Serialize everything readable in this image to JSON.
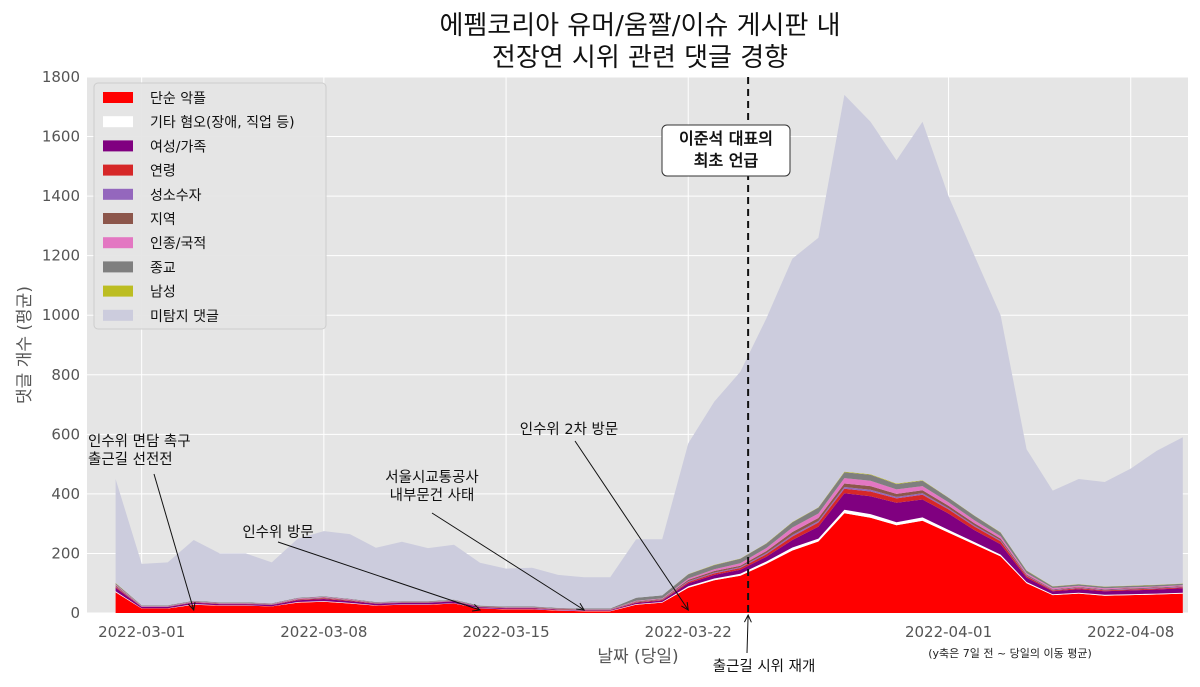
{
  "chart_data": {
    "type": "area",
    "stacked": true,
    "title": [
      "에펨코리아 유머/움짤/이슈 게시판 내",
      "전장연 시위 관련 댓글 경향"
    ],
    "xlabel": "날짜 (당일)",
    "ylabel": "댓글 개수 (평균)",
    "note": "(y축은 7일 전 ~ 당일의 이동 평균)",
    "ylim": [
      0,
      1800
    ],
    "yticks": [
      0,
      200,
      400,
      600,
      800,
      1000,
      1200,
      1400,
      1600,
      1800
    ],
    "xticks": [
      {
        "index": 1,
        "label": "2022-03-01"
      },
      {
        "index": 8,
        "label": "2022-03-08"
      },
      {
        "index": 15,
        "label": "2022-03-15"
      },
      {
        "index": 22,
        "label": "2022-03-22"
      },
      {
        "index": 32,
        "label": "2022-04-01"
      },
      {
        "index": 39,
        "label": "2022-04-08"
      }
    ],
    "xrange": [
      -1.1,
      41.2
    ],
    "grid": true,
    "legend_position": "top-left",
    "x": [
      "2022-02-28",
      "2022-03-01",
      "2022-03-02",
      "2022-03-03",
      "2022-03-04",
      "2022-03-05",
      "2022-03-06",
      "2022-03-07",
      "2022-03-08",
      "2022-03-09",
      "2022-03-10",
      "2022-03-11",
      "2022-03-12",
      "2022-03-13",
      "2022-03-14",
      "2022-03-15",
      "2022-03-16",
      "2022-03-17",
      "2022-03-18",
      "2022-03-19",
      "2022-03-20",
      "2022-03-21",
      "2022-03-22",
      "2022-03-23",
      "2022-03-24",
      "2022-03-25",
      "2022-03-26",
      "2022-03-27",
      "2022-03-28",
      "2022-03-29",
      "2022-03-30",
      "2022-03-31",
      "2022-04-01",
      "2022-04-02",
      "2022-04-03",
      "2022-04-04",
      "2022-04-05",
      "2022-04-06",
      "2022-04-07",
      "2022-04-08",
      "2022-04-09",
      "2022-04-10"
    ],
    "series": [
      {
        "name": "단순 악플",
        "color": "#ff0000",
        "values": [
          70,
          15,
          15,
          28,
          25,
          25,
          22,
          35,
          38,
          32,
          25,
          28,
          28,
          32,
          15,
          12,
          12,
          8,
          6,
          6,
          28,
          35,
          85,
          110,
          125,
          165,
          210,
          240,
          335,
          320,
          295,
          310,
          270,
          230,
          190,
          100,
          60,
          65,
          58,
          60,
          62,
          65
        ]
      },
      {
        "name": "기타 혐오(장애, 직업 등)",
        "color": "#ffffff",
        "values": [
          3,
          1,
          1,
          2,
          1,
          1,
          1,
          2,
          2,
          2,
          1,
          1,
          1,
          1,
          1,
          1,
          1,
          1,
          1,
          1,
          2,
          2,
          5,
          6,
          7,
          8,
          10,
          10,
          12,
          12,
          10,
          11,
          9,
          8,
          6,
          4,
          3,
          3,
          3,
          3,
          3,
          3
        ]
      },
      {
        "name": "여성/가족",
        "color": "#800080",
        "values": [
          12,
          4,
          4,
          5,
          4,
          4,
          4,
          6,
          7,
          6,
          5,
          5,
          5,
          6,
          3,
          3,
          3,
          2,
          2,
          2,
          4,
          5,
          10,
          12,
          13,
          16,
          25,
          40,
          55,
          60,
          65,
          60,
          55,
          40,
          35,
          15,
          10,
          12,
          12,
          13,
          14,
          15
        ]
      },
      {
        "name": "연령",
        "color": "#d62728",
        "values": [
          3,
          1,
          1,
          1,
          1,
          1,
          1,
          2,
          2,
          2,
          1,
          1,
          1,
          1,
          1,
          1,
          1,
          1,
          1,
          1,
          2,
          2,
          4,
          5,
          6,
          8,
          12,
          14,
          15,
          16,
          15,
          16,
          14,
          12,
          10,
          5,
          3,
          3,
          3,
          3,
          3,
          3
        ]
      },
      {
        "name": "성소수자",
        "color": "#9467bd",
        "values": [
          2,
          1,
          1,
          1,
          1,
          1,
          1,
          1,
          1,
          1,
          1,
          1,
          1,
          1,
          1,
          1,
          1,
          1,
          1,
          1,
          1,
          1,
          3,
          3,
          3,
          4,
          5,
          5,
          6,
          6,
          5,
          5,
          4,
          4,
          3,
          2,
          2,
          2,
          2,
          2,
          2,
          2
        ]
      },
      {
        "name": "지역",
        "color": "#8c564b",
        "values": [
          3,
          1,
          1,
          1,
          1,
          1,
          1,
          1,
          2,
          1,
          1,
          1,
          1,
          1,
          1,
          1,
          1,
          1,
          1,
          1,
          2,
          2,
          4,
          5,
          5,
          7,
          10,
          10,
          12,
          12,
          10,
          10,
          8,
          7,
          6,
          3,
          2,
          2,
          2,
          2,
          2,
          2
        ]
      },
      {
        "name": "인종/국적",
        "color": "#e377c2",
        "values": [
          3,
          1,
          1,
          1,
          1,
          1,
          1,
          2,
          2,
          2,
          1,
          1,
          1,
          1,
          1,
          1,
          1,
          1,
          1,
          1,
          2,
          2,
          5,
          6,
          8,
          10,
          15,
          15,
          18,
          18,
          15,
          14,
          12,
          10,
          8,
          5,
          4,
          4,
          3,
          3,
          3,
          3
        ]
      },
      {
        "name": "종교",
        "color": "#7f7f7f",
        "values": [
          4,
          2,
          2,
          2,
          2,
          2,
          2,
          2,
          2,
          2,
          2,
          2,
          2,
          2,
          2,
          2,
          2,
          2,
          2,
          2,
          10,
          10,
          14,
          14,
          15,
          15,
          18,
          20,
          20,
          20,
          18,
          18,
          15,
          15,
          12,
          8,
          5,
          5,
          5,
          5,
          5,
          5
        ]
      },
      {
        "name": "남성",
        "color": "#bcbd22",
        "values": [
          1,
          0,
          0,
          0,
          0,
          0,
          0,
          0,
          0,
          0,
          0,
          0,
          0,
          0,
          0,
          0,
          0,
          0,
          0,
          0,
          0,
          0,
          1,
          1,
          1,
          1,
          1,
          1,
          2,
          2,
          2,
          2,
          1,
          1,
          1,
          1,
          1,
          1,
          1,
          1,
          1,
          1
        ]
      },
      {
        "name": "미탐지 댓글",
        "color": "#ccccdd",
        "values": [
          349,
          139,
          144,
          204,
          164,
          164,
          137,
          199,
          219,
          217,
          182,
          199,
          178,
          184,
          144,
          127,
          130,
          111,
          105,
          105,
          197,
          189,
          439,
          548,
          627,
          755,
          884,
          905,
          1265,
          1184,
          1085,
          1204,
          1012,
          872,
          729,
          407,
          321,
          353,
          351,
          393,
          450,
          491
        ]
      }
    ],
    "vline": {
      "index": 24.3,
      "style": "dashed"
    },
    "annotations": [
      {
        "lines": [
          "인수위 면담 촉구",
          "출근길 선전전"
        ],
        "target_index": 3
      },
      {
        "lines": [
          "인수위 방문"
        ],
        "target_index": 14
      },
      {
        "lines": [
          "서울시교통공사",
          "내부문건 사태"
        ],
        "target_index": 18
      },
      {
        "lines": [
          "인수위 2차 방문"
        ],
        "target_index": 22
      },
      {
        "lines": [
          "출근길 시위 재개"
        ],
        "target_index": 24.3
      },
      {
        "lines": [
          "이준석 대표의",
          "최초 언급"
        ],
        "boxed": true
      }
    ]
  }
}
